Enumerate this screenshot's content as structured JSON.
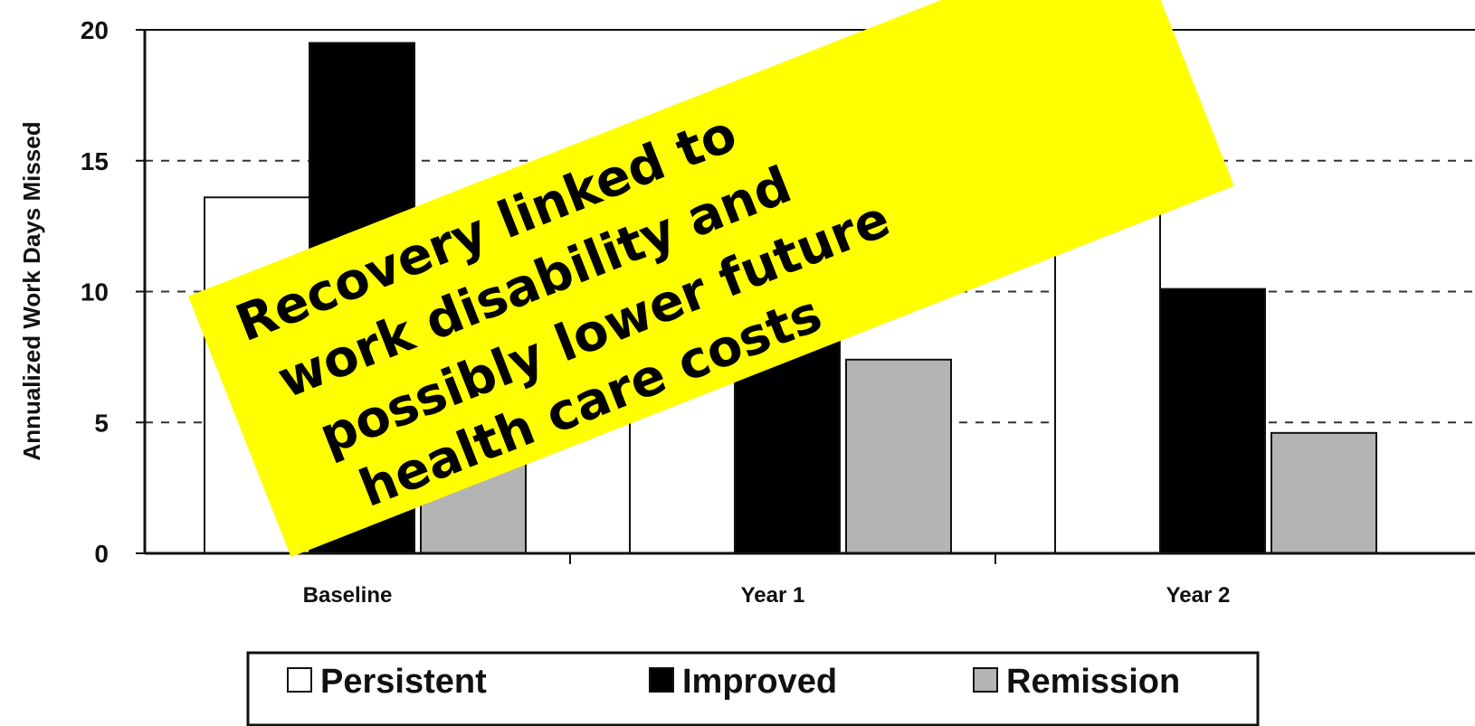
{
  "chart_data": {
    "type": "bar",
    "title": "",
    "xlabel": "",
    "ylabel": "Annualized Work Days Missed",
    "categories": [
      "Baseline",
      "Year 1",
      "Year 2"
    ],
    "series": [
      {
        "name": "Persistent",
        "values": [
          13.6,
          15.0,
          15.0
        ],
        "color": "#ffffff"
      },
      {
        "name": "Improved",
        "values": [
          19.5,
          10.2,
          10.1
        ],
        "color": "#000000"
      },
      {
        "name": "Remission",
        "values": [
          4.0,
          7.4,
          4.6
        ],
        "color": "#b4b4b4"
      }
    ],
    "ylim": [
      0,
      20
    ],
    "yticks": [
      "0",
      "5",
      "10",
      "15",
      "20"
    ],
    "grid": "dashed horizontal",
    "legend_placement": "bottom"
  },
  "annotation": {
    "lines": [
      "Recovery linked to",
      "work disability and",
      "possibly lower future",
      "health care costs"
    ],
    "background": "#ffff00"
  }
}
